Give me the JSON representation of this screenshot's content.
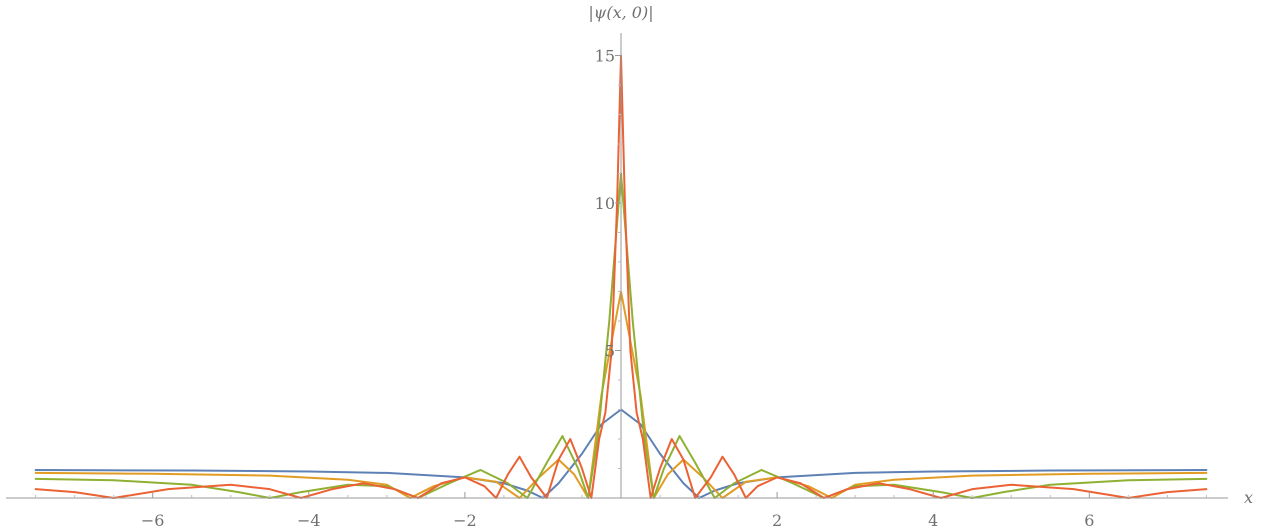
{
  "chart_data": {
    "type": "line",
    "title": "",
    "xlabel": "x",
    "ylabel": "|ψ(x, 0)|",
    "xlim": [
      -7.6,
      7.6
    ],
    "ylim": [
      0,
      15.5
    ],
    "grid": false,
    "legend": "none",
    "x_ticks": [
      -6,
      -4,
      -2,
      2,
      4,
      6
    ],
    "x_tick_labels": [
      "−6",
      "−4",
      "−2",
      "2",
      "4",
      "6"
    ],
    "y_ticks": [
      5,
      10,
      15
    ],
    "y_tick_labels": [
      "5",
      "10",
      "15"
    ],
    "series": [
      {
        "color": "#5E81B5",
        "peak": 3.0,
        "tail": 0.95,
        "points": [
          [
            -7.5,
            0.95
          ],
          [
            -5.5,
            0.93
          ],
          [
            -4,
            0.9
          ],
          [
            -3,
            0.85
          ],
          [
            -2,
            0.7
          ],
          [
            -1.5,
            0.5
          ],
          [
            -1.2,
            0.25
          ],
          [
            -1,
            0.0
          ],
          [
            -0.8,
            0.5
          ],
          [
            -0.5,
            1.5
          ],
          [
            -0.25,
            2.5
          ],
          [
            0,
            3.0
          ],
          [
            0.25,
            2.5
          ],
          [
            0.5,
            1.5
          ],
          [
            0.8,
            0.5
          ],
          [
            1,
            0.0
          ],
          [
            1.2,
            0.25
          ],
          [
            1.5,
            0.5
          ],
          [
            2,
            0.7
          ],
          [
            3,
            0.85
          ],
          [
            4,
            0.9
          ],
          [
            5.5,
            0.93
          ],
          [
            7.5,
            0.95
          ]
        ]
      },
      {
        "color": "#E19C24",
        "peak": 7.0,
        "tail": 0.85,
        "points": [
          [
            -7.5,
            0.85
          ],
          [
            -6,
            0.82
          ],
          [
            -4.5,
            0.76
          ],
          [
            -3.5,
            0.62
          ],
          [
            -3,
            0.45
          ],
          [
            -2.7,
            0.0
          ],
          [
            -2.4,
            0.4
          ],
          [
            -2,
            0.7
          ],
          [
            -1.6,
            0.55
          ],
          [
            -1.3,
            0.0
          ],
          [
            -1.05,
            0.7
          ],
          [
            -0.8,
            1.3
          ],
          [
            -0.6,
            0.8
          ],
          [
            -0.42,
            0.0
          ],
          [
            -0.25,
            3.5
          ],
          [
            0,
            7.0
          ],
          [
            0.25,
            3.5
          ],
          [
            0.42,
            0.0
          ],
          [
            0.6,
            0.8
          ],
          [
            0.8,
            1.3
          ],
          [
            1.05,
            0.7
          ],
          [
            1.3,
            0.0
          ],
          [
            1.6,
            0.55
          ],
          [
            2,
            0.7
          ],
          [
            2.4,
            0.4
          ],
          [
            2.7,
            0.0
          ],
          [
            3,
            0.45
          ],
          [
            3.5,
            0.62
          ],
          [
            4.5,
            0.76
          ],
          [
            6,
            0.82
          ],
          [
            7.5,
            0.85
          ]
        ]
      },
      {
        "color": "#8FB032",
        "peak": 11.0,
        "tail": 0.65,
        "points": [
          [
            -7.5,
            0.65
          ],
          [
            -6.5,
            0.6
          ],
          [
            -5.5,
            0.45
          ],
          [
            -4.9,
            0.2
          ],
          [
            -4.5,
            0.0
          ],
          [
            -4.1,
            0.2
          ],
          [
            -3.5,
            0.45
          ],
          [
            -3,
            0.4
          ],
          [
            -2.6,
            0.0
          ],
          [
            -2.2,
            0.5
          ],
          [
            -1.8,
            0.95
          ],
          [
            -1.45,
            0.5
          ],
          [
            -1.2,
            0.0
          ],
          [
            -0.95,
            1.2
          ],
          [
            -0.75,
            2.1
          ],
          [
            -0.55,
            1.0
          ],
          [
            -0.42,
            0.0
          ],
          [
            -0.3,
            2.0
          ],
          [
            -0.15,
            6.0
          ],
          [
            0,
            11.0
          ],
          [
            0.15,
            6.0
          ],
          [
            0.3,
            2.0
          ],
          [
            0.42,
            0.0
          ],
          [
            0.55,
            1.0
          ],
          [
            0.75,
            2.1
          ],
          [
            0.95,
            1.2
          ],
          [
            1.2,
            0.0
          ],
          [
            1.45,
            0.5
          ],
          [
            1.8,
            0.95
          ],
          [
            2.2,
            0.5
          ],
          [
            2.6,
            0.0
          ],
          [
            3,
            0.4
          ],
          [
            3.5,
            0.45
          ],
          [
            4.1,
            0.2
          ],
          [
            4.5,
            0.0
          ],
          [
            4.9,
            0.2
          ],
          [
            5.5,
            0.45
          ],
          [
            6.5,
            0.6
          ],
          [
            7.5,
            0.65
          ]
        ]
      },
      {
        "color": "#EB6235",
        "peak": 15.0,
        "tail": 0.3,
        "points": [
          [
            -7.5,
            0.3
          ],
          [
            -7,
            0.2
          ],
          [
            -6.5,
            0.0
          ],
          [
            -5.8,
            0.3
          ],
          [
            -5,
            0.45
          ],
          [
            -4.5,
            0.3
          ],
          [
            -4.1,
            0.0
          ],
          [
            -3.7,
            0.3
          ],
          [
            -3.3,
            0.5
          ],
          [
            -2.9,
            0.3
          ],
          [
            -2.6,
            0.0
          ],
          [
            -2.3,
            0.5
          ],
          [
            -2,
            0.7
          ],
          [
            -1.75,
            0.4
          ],
          [
            -1.6,
            0.0
          ],
          [
            -1.45,
            0.8
          ],
          [
            -1.3,
            1.4
          ],
          [
            -1.15,
            0.7
          ],
          [
            -0.95,
            0.0
          ],
          [
            -0.8,
            1.3
          ],
          [
            -0.65,
            2.0
          ],
          [
            -0.5,
            1.0
          ],
          [
            -0.38,
            0.0
          ],
          [
            -0.28,
            2.0
          ],
          [
            -0.2,
            2.9
          ],
          [
            -0.12,
            5.0
          ],
          [
            -0.05,
            10.0
          ],
          [
            0,
            15.0
          ],
          [
            0.05,
            10.0
          ],
          [
            0.12,
            5.0
          ],
          [
            0.2,
            2.9
          ],
          [
            0.28,
            2.0
          ],
          [
            0.38,
            0.0
          ],
          [
            0.5,
            1.0
          ],
          [
            0.65,
            2.0
          ],
          [
            0.8,
            1.3
          ],
          [
            0.95,
            0.0
          ],
          [
            1.15,
            0.7
          ],
          [
            1.3,
            1.4
          ],
          [
            1.45,
            0.8
          ],
          [
            1.6,
            0.0
          ],
          [
            1.75,
            0.4
          ],
          [
            2,
            0.7
          ],
          [
            2.3,
            0.5
          ],
          [
            2.6,
            0.0
          ],
          [
            2.9,
            0.3
          ],
          [
            3.3,
            0.5
          ],
          [
            3.7,
            0.3
          ],
          [
            4.1,
            0.0
          ],
          [
            4.5,
            0.3
          ],
          [
            5,
            0.45
          ],
          [
            5.8,
            0.3
          ],
          [
            6.5,
            0.0
          ],
          [
            7,
            0.2
          ],
          [
            7.5,
            0.3
          ]
        ]
      }
    ]
  }
}
